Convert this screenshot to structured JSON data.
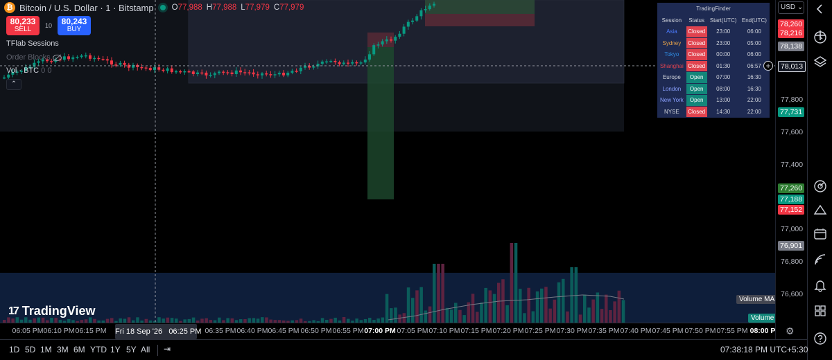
{
  "header": {
    "coin_glyph": "₿",
    "symbol": "Bitcoin / U.S. Dollar · 1 · Bitstamp",
    "ohlc": {
      "o_key": "O",
      "o": "77,988",
      "h_key": "H",
      "h": "77,988",
      "l_key": "L",
      "l": "77,979",
      "c_key": "C",
      "c": "77,979"
    }
  },
  "trade": {
    "sell_price": "80,233",
    "sell_label": "SELL",
    "spread": "10",
    "buy_price": "80,243",
    "buy_label": "BUY"
  },
  "studies": {
    "sessions": "TFlab Sessions",
    "order_blocks": "Order Blocks",
    "volume": "Vol · BTC",
    "volume_values": "0  0",
    "collapse_glyph": "⌃"
  },
  "branding": {
    "logo_mark": "17",
    "logo_text": "TradingView"
  },
  "session_table": {
    "title": "TradingFinder",
    "headers": [
      "Session",
      "Status",
      "Start(UTC)",
      "End(UTC)"
    ],
    "rows": [
      {
        "session": "Asia",
        "status": "Closed",
        "start": "23:00",
        "end": "06:00",
        "color": "#4c7bff"
      },
      {
        "session": "Sydney",
        "status": "Closed",
        "start": "23:00",
        "end": "05:00",
        "color": "#e3a04a"
      },
      {
        "session": "Tokyo",
        "status": "Closed",
        "start": "00:00",
        "end": "06:00",
        "color": "#2f8de4"
      },
      {
        "session": "Shanghai",
        "status": "Closed",
        "start": "01:30",
        "end": "06:57",
        "color": "#e0434f"
      },
      {
        "session": "Europe",
        "status": "Open",
        "start": "07:00",
        "end": "16:30",
        "color": "#d1d4dc"
      },
      {
        "session": "London",
        "status": "Open",
        "start": "08:00",
        "end": "16:30",
        "color": "#8aa0ff"
      },
      {
        "session": "New York",
        "status": "Open",
        "start": "13:00",
        "end": "22:00",
        "color": "#8aa0ff"
      },
      {
        "session": "NYSE",
        "status": "Closed",
        "start": "14:30",
        "end": "22:00",
        "color": "#d1d4dc"
      }
    ]
  },
  "price_axis": {
    "currency": "USD",
    "currency_caret": "⌄",
    "ticks": [
      "77,800",
      "77,600",
      "77,400",
      "77,000",
      "76,800",
      "76,600"
    ],
    "labels": [
      {
        "text": "78,260",
        "color": "#f23645"
      },
      {
        "text": "78,216",
        "color": "#f23645"
      },
      {
        "text": "78,138",
        "color": "#787b86"
      },
      {
        "text": "78,013",
        "color": "#131722"
      },
      {
        "text": "77,731",
        "color": "#089981"
      },
      {
        "text": "77,260",
        "color": "#2e7d32"
      },
      {
        "text": "77,188",
        "color": "#089981"
      },
      {
        "text": "77,152",
        "color": "#f23645"
      },
      {
        "text": "76,901",
        "color": "#787b86"
      }
    ],
    "crosshair_plus": "+",
    "settings_glyph": "⚙"
  },
  "volume_pane": {
    "ma_label": "Volume MA",
    "vol_label": "Volume"
  },
  "time_axis": {
    "labels": [
      "06:05 PM",
      "06:10 PM",
      "06:15 PM",
      "06:35 PM",
      "06:40 PM",
      "06:45 PM",
      "06:50 PM",
      "06:55 PM",
      "07:00 PM",
      "07:05 PM",
      "07:10 PM",
      "07:15 PM",
      "07:20 PM",
      "07:25 PM",
      "07:30 PM",
      "07:35 PM",
      "07:40 PM",
      "07:45 PM",
      "07:50 PM",
      "07:55 PM",
      "08:00 P"
    ],
    "crosshair_date": "Fri 18 Sep '26",
    "crosshair_time": "06:25 PM"
  },
  "bottom_bar": {
    "ranges": [
      "1D",
      "5D",
      "1M",
      "3M",
      "6M",
      "YTD",
      "1Y",
      "5Y",
      "All"
    ],
    "clock": "07:38:18 PM UTC+5:30",
    "calendar_glyph": "⇥"
  },
  "colors": {
    "up": "#089981",
    "down": "#f23645",
    "background": "#000000",
    "session_box": "#1e222d",
    "volume_pane": "#0f2140"
  },
  "toolbar_icons": [
    "chevron-left-icon",
    "plus-icon",
    "clock-icon",
    "layers-icon",
    "gauge-icon",
    "up-arrow-icon",
    "calendar-icon",
    "signal-icon",
    "bell-icon",
    "grid-icon",
    "help-icon"
  ]
}
